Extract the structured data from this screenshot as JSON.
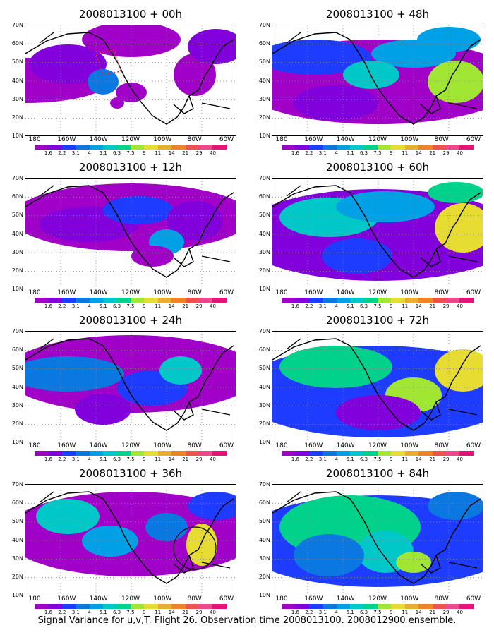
{
  "caption": "Signal Variance for u,v,T. Flight 26. Observation time 2008013100. 2008012900 ensemble.",
  "lat_labels": [
    "70N",
    "60N",
    "50N",
    "40N",
    "30N",
    "20N",
    "10N"
  ],
  "lon_labels": [
    "180",
    "160W",
    "140W",
    "120W",
    "100W",
    "80W",
    "60W"
  ],
  "colorbar": {
    "labels": [
      "1.6",
      "2.2",
      "3.1",
      "4",
      "5.1",
      "6.3",
      "7.5",
      "9",
      "11",
      "14",
      "21",
      "29",
      "40"
    ],
    "colors": [
      "#a000c8",
      "#8200dc",
      "#1e3cff",
      "#0a78e0",
      "#00a0e6",
      "#00c8c8",
      "#00d28c",
      "#a0e632",
      "#e6dc32",
      "#e6af2d",
      "#f08228",
      "#f05050",
      "#f0468c",
      "#e6147a"
    ]
  },
  "panels": [
    {
      "title": "2008013100 + 00h"
    },
    {
      "title": "2008013100 + 48h"
    },
    {
      "title": "2008013100 + 12h"
    },
    {
      "title": "2008013100 + 60h"
    },
    {
      "title": "2008013100 + 24h"
    },
    {
      "title": "2008013100 + 72h"
    },
    {
      "title": "2008013100 + 36h"
    },
    {
      "title": "2008013100 + 84h"
    }
  ]
}
